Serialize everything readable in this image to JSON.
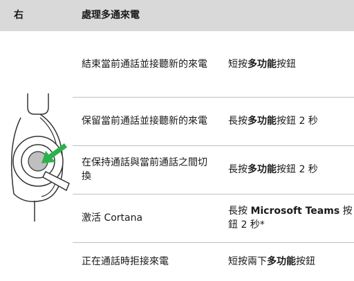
{
  "header": {
    "col1": "右",
    "col2": "處理多通來電"
  },
  "table": {
    "rows": [
      {
        "action": "結束當前通話並接聽新的來電",
        "instruction": [
          {
            "text": "短按",
            "bold": false
          },
          {
            "text": "多功能",
            "bold": true
          },
          {
            "text": "按鈕",
            "bold": false
          }
        ]
      },
      {
        "action": "保留當前通話並接聽新的來電",
        "instruction": [
          {
            "text": "長按",
            "bold": false
          },
          {
            "text": "多功能",
            "bold": true
          },
          {
            "text": "按鈕 2 秒",
            "bold": false
          }
        ]
      },
      {
        "action": "在保持通話與當前通話之間切換",
        "instruction": [
          {
            "text": "長按",
            "bold": false
          },
          {
            "text": "多功能",
            "bold": true
          },
          {
            "text": "按鈕 2 秒",
            "bold": false
          }
        ]
      },
      {
        "action": "激活 Cortana",
        "instruction": [
          {
            "text": "長按 ",
            "bold": false
          },
          {
            "text": "Microsoft Teams",
            "bold": true
          },
          {
            "text": " 按鈕 2 秒*",
            "bold": false
          }
        ]
      },
      {
        "action": "正在通話時拒接來電",
        "instruction": [
          {
            "text": "短按兩下",
            "bold": false
          },
          {
            "text": "多功能",
            "bold": true
          },
          {
            "text": "按鈕",
            "bold": false
          }
        ]
      }
    ]
  }
}
